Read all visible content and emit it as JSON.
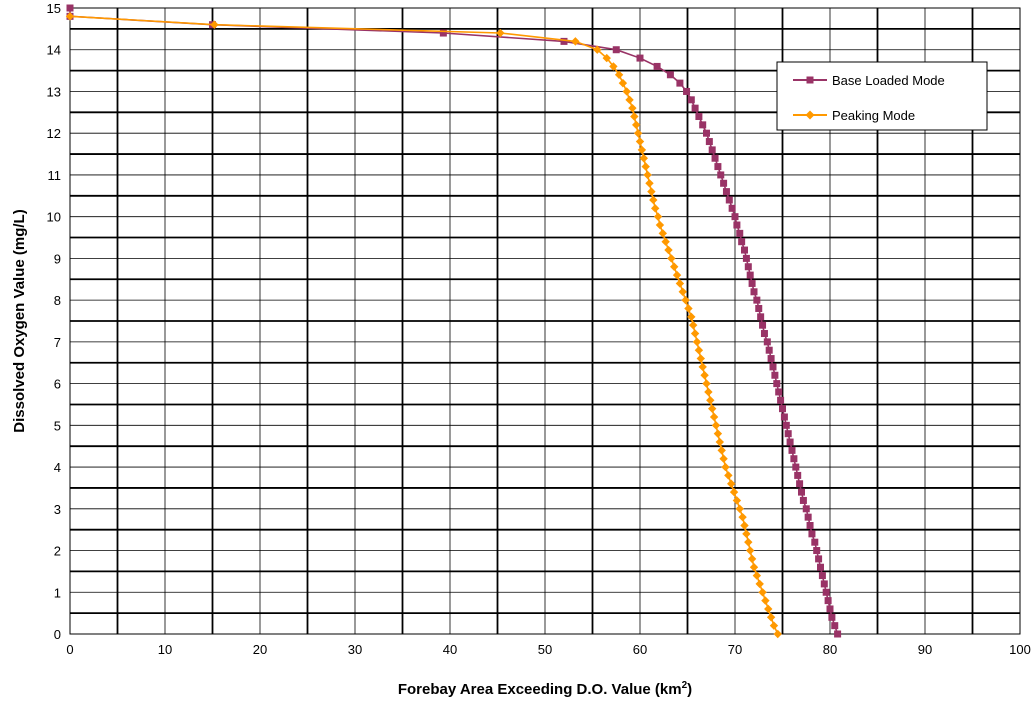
{
  "chart_data": {
    "type": "line",
    "title": "",
    "xlabel": "Forebay Area Exceeding D.O. Value (km",
    "xlabel_sup": "2",
    "xlabel_end": ")",
    "ylabel": "Dissolved Oxygen Value (mg/L)",
    "xlim": [
      0,
      100
    ],
    "ylim": [
      0,
      15
    ],
    "x_ticks": [
      0,
      10,
      20,
      30,
      40,
      50,
      60,
      70,
      80,
      90,
      100
    ],
    "y_ticks": [
      0,
      1,
      2,
      3,
      4,
      5,
      6,
      7,
      8,
      9,
      10,
      11,
      12,
      13,
      14,
      15
    ],
    "grid": "on (major gridlines every 10 km² and 1 mg/L, minor every 5 km² and 0.5 mg/L)",
    "legend_position": "top-right",
    "series": [
      {
        "name": "Base Loaded Mode",
        "color": "#993366",
        "marker": "square",
        "points": [
          [
            0,
            15.0
          ],
          [
            0,
            14.8
          ],
          [
            15,
            14.6
          ],
          [
            39.3,
            14.4
          ],
          [
            52,
            14.2
          ],
          [
            57.5,
            14.0
          ],
          [
            60,
            13.8
          ],
          [
            61.8,
            13.6
          ],
          [
            63.2,
            13.4
          ],
          [
            64.2,
            13.2
          ],
          [
            64.9,
            13.0
          ],
          [
            65.4,
            12.8
          ],
          [
            65.8,
            12.6
          ],
          [
            66.2,
            12.4
          ],
          [
            66.6,
            12.2
          ],
          [
            67,
            12.0
          ],
          [
            67.3,
            11.8
          ],
          [
            67.6,
            11.6
          ],
          [
            67.9,
            11.4
          ],
          [
            68.2,
            11.2
          ],
          [
            68.5,
            11.0
          ],
          [
            68.8,
            10.8
          ],
          [
            69.1,
            10.6
          ],
          [
            69.4,
            10.4
          ],
          [
            69.7,
            10.2
          ],
          [
            70,
            10.0
          ],
          [
            70.2,
            9.8
          ],
          [
            70.5,
            9.6
          ],
          [
            70.7,
            9.4
          ],
          [
            71,
            9.2
          ],
          [
            71.2,
            9.0
          ],
          [
            71.4,
            8.8
          ],
          [
            71.6,
            8.6
          ],
          [
            71.8,
            8.4
          ],
          [
            72,
            8.2
          ],
          [
            72.3,
            8.0
          ],
          [
            72.5,
            7.8
          ],
          [
            72.7,
            7.6
          ],
          [
            72.9,
            7.4
          ],
          [
            73.1,
            7.2
          ],
          [
            73.4,
            7.0
          ],
          [
            73.6,
            6.8
          ],
          [
            73.8,
            6.6
          ],
          [
            74,
            6.4
          ],
          [
            74.2,
            6.2
          ],
          [
            74.4,
            6.0
          ],
          [
            74.6,
            5.8
          ],
          [
            74.8,
            5.6
          ],
          [
            75,
            5.4
          ],
          [
            75.2,
            5.2
          ],
          [
            75.4,
            5.0
          ],
          [
            75.6,
            4.8
          ],
          [
            75.8,
            4.6
          ],
          [
            76,
            4.4
          ],
          [
            76.2,
            4.2
          ],
          [
            76.4,
            4.0
          ],
          [
            76.6,
            3.8
          ],
          [
            76.8,
            3.6
          ],
          [
            77,
            3.4
          ],
          [
            77.2,
            3.2
          ],
          [
            77.5,
            3.0
          ],
          [
            77.7,
            2.8
          ],
          [
            77.9,
            2.6
          ],
          [
            78.1,
            2.4
          ],
          [
            78.4,
            2.2
          ],
          [
            78.6,
            2.0
          ],
          [
            78.8,
            1.8
          ],
          [
            79,
            1.6
          ],
          [
            79.2,
            1.4
          ],
          [
            79.4,
            1.2
          ],
          [
            79.6,
            1.0
          ],
          [
            79.8,
            0.8
          ],
          [
            80,
            0.6
          ],
          [
            80.2,
            0.4
          ],
          [
            80.5,
            0.2
          ],
          [
            80.8,
            0.0
          ]
        ]
      },
      {
        "name": "Peaking Mode",
        "color": "#FF9900",
        "marker": "diamond",
        "points": [
          [
            0,
            14.8
          ],
          [
            15.2,
            14.6
          ],
          [
            45.3,
            14.4
          ],
          [
            53.2,
            14.2
          ],
          [
            55.5,
            14.0
          ],
          [
            56.5,
            13.8
          ],
          [
            57.2,
            13.6
          ],
          [
            57.8,
            13.4
          ],
          [
            58.2,
            13.2
          ],
          [
            58.6,
            13.0
          ],
          [
            58.9,
            12.8
          ],
          [
            59.2,
            12.6
          ],
          [
            59.4,
            12.4
          ],
          [
            59.6,
            12.2
          ],
          [
            59.8,
            12.0
          ],
          [
            60,
            11.8
          ],
          [
            60.2,
            11.6
          ],
          [
            60.4,
            11.4
          ],
          [
            60.6,
            11.2
          ],
          [
            60.8,
            11.0
          ],
          [
            61,
            10.8
          ],
          [
            61.2,
            10.6
          ],
          [
            61.4,
            10.4
          ],
          [
            61.6,
            10.2
          ],
          [
            61.9,
            10.0
          ],
          [
            62.1,
            9.8
          ],
          [
            62.4,
            9.6
          ],
          [
            62.7,
            9.4
          ],
          [
            63,
            9.2
          ],
          [
            63.3,
            9.0
          ],
          [
            63.6,
            8.8
          ],
          [
            63.9,
            8.6
          ],
          [
            64.2,
            8.4
          ],
          [
            64.5,
            8.2
          ],
          [
            64.8,
            8.0
          ],
          [
            65.1,
            7.8
          ],
          [
            65.4,
            7.6
          ],
          [
            65.6,
            7.4
          ],
          [
            65.8,
            7.2
          ],
          [
            66,
            7.0
          ],
          [
            66.2,
            6.8
          ],
          [
            66.4,
            6.6
          ],
          [
            66.6,
            6.4
          ],
          [
            66.8,
            6.2
          ],
          [
            67,
            6.0
          ],
          [
            67.2,
            5.8
          ],
          [
            67.4,
            5.6
          ],
          [
            67.6,
            5.4
          ],
          [
            67.8,
            5.2
          ],
          [
            68,
            5.0
          ],
          [
            68.2,
            4.8
          ],
          [
            68.4,
            4.6
          ],
          [
            68.6,
            4.4
          ],
          [
            68.8,
            4.2
          ],
          [
            69,
            4.0
          ],
          [
            69.3,
            3.8
          ],
          [
            69.6,
            3.6
          ],
          [
            69.9,
            3.4
          ],
          [
            70.2,
            3.2
          ],
          [
            70.5,
            3.0
          ],
          [
            70.8,
            2.8
          ],
          [
            71,
            2.6
          ],
          [
            71.2,
            2.4
          ],
          [
            71.4,
            2.2
          ],
          [
            71.6,
            2.0
          ],
          [
            71.8,
            1.8
          ],
          [
            72,
            1.6
          ],
          [
            72.3,
            1.4
          ],
          [
            72.6,
            1.2
          ],
          [
            72.9,
            1.0
          ],
          [
            73.2,
            0.8
          ],
          [
            73.5,
            0.6
          ],
          [
            73.8,
            0.4
          ],
          [
            74.1,
            0.2
          ],
          [
            74.5,
            0.0
          ]
        ]
      }
    ]
  }
}
